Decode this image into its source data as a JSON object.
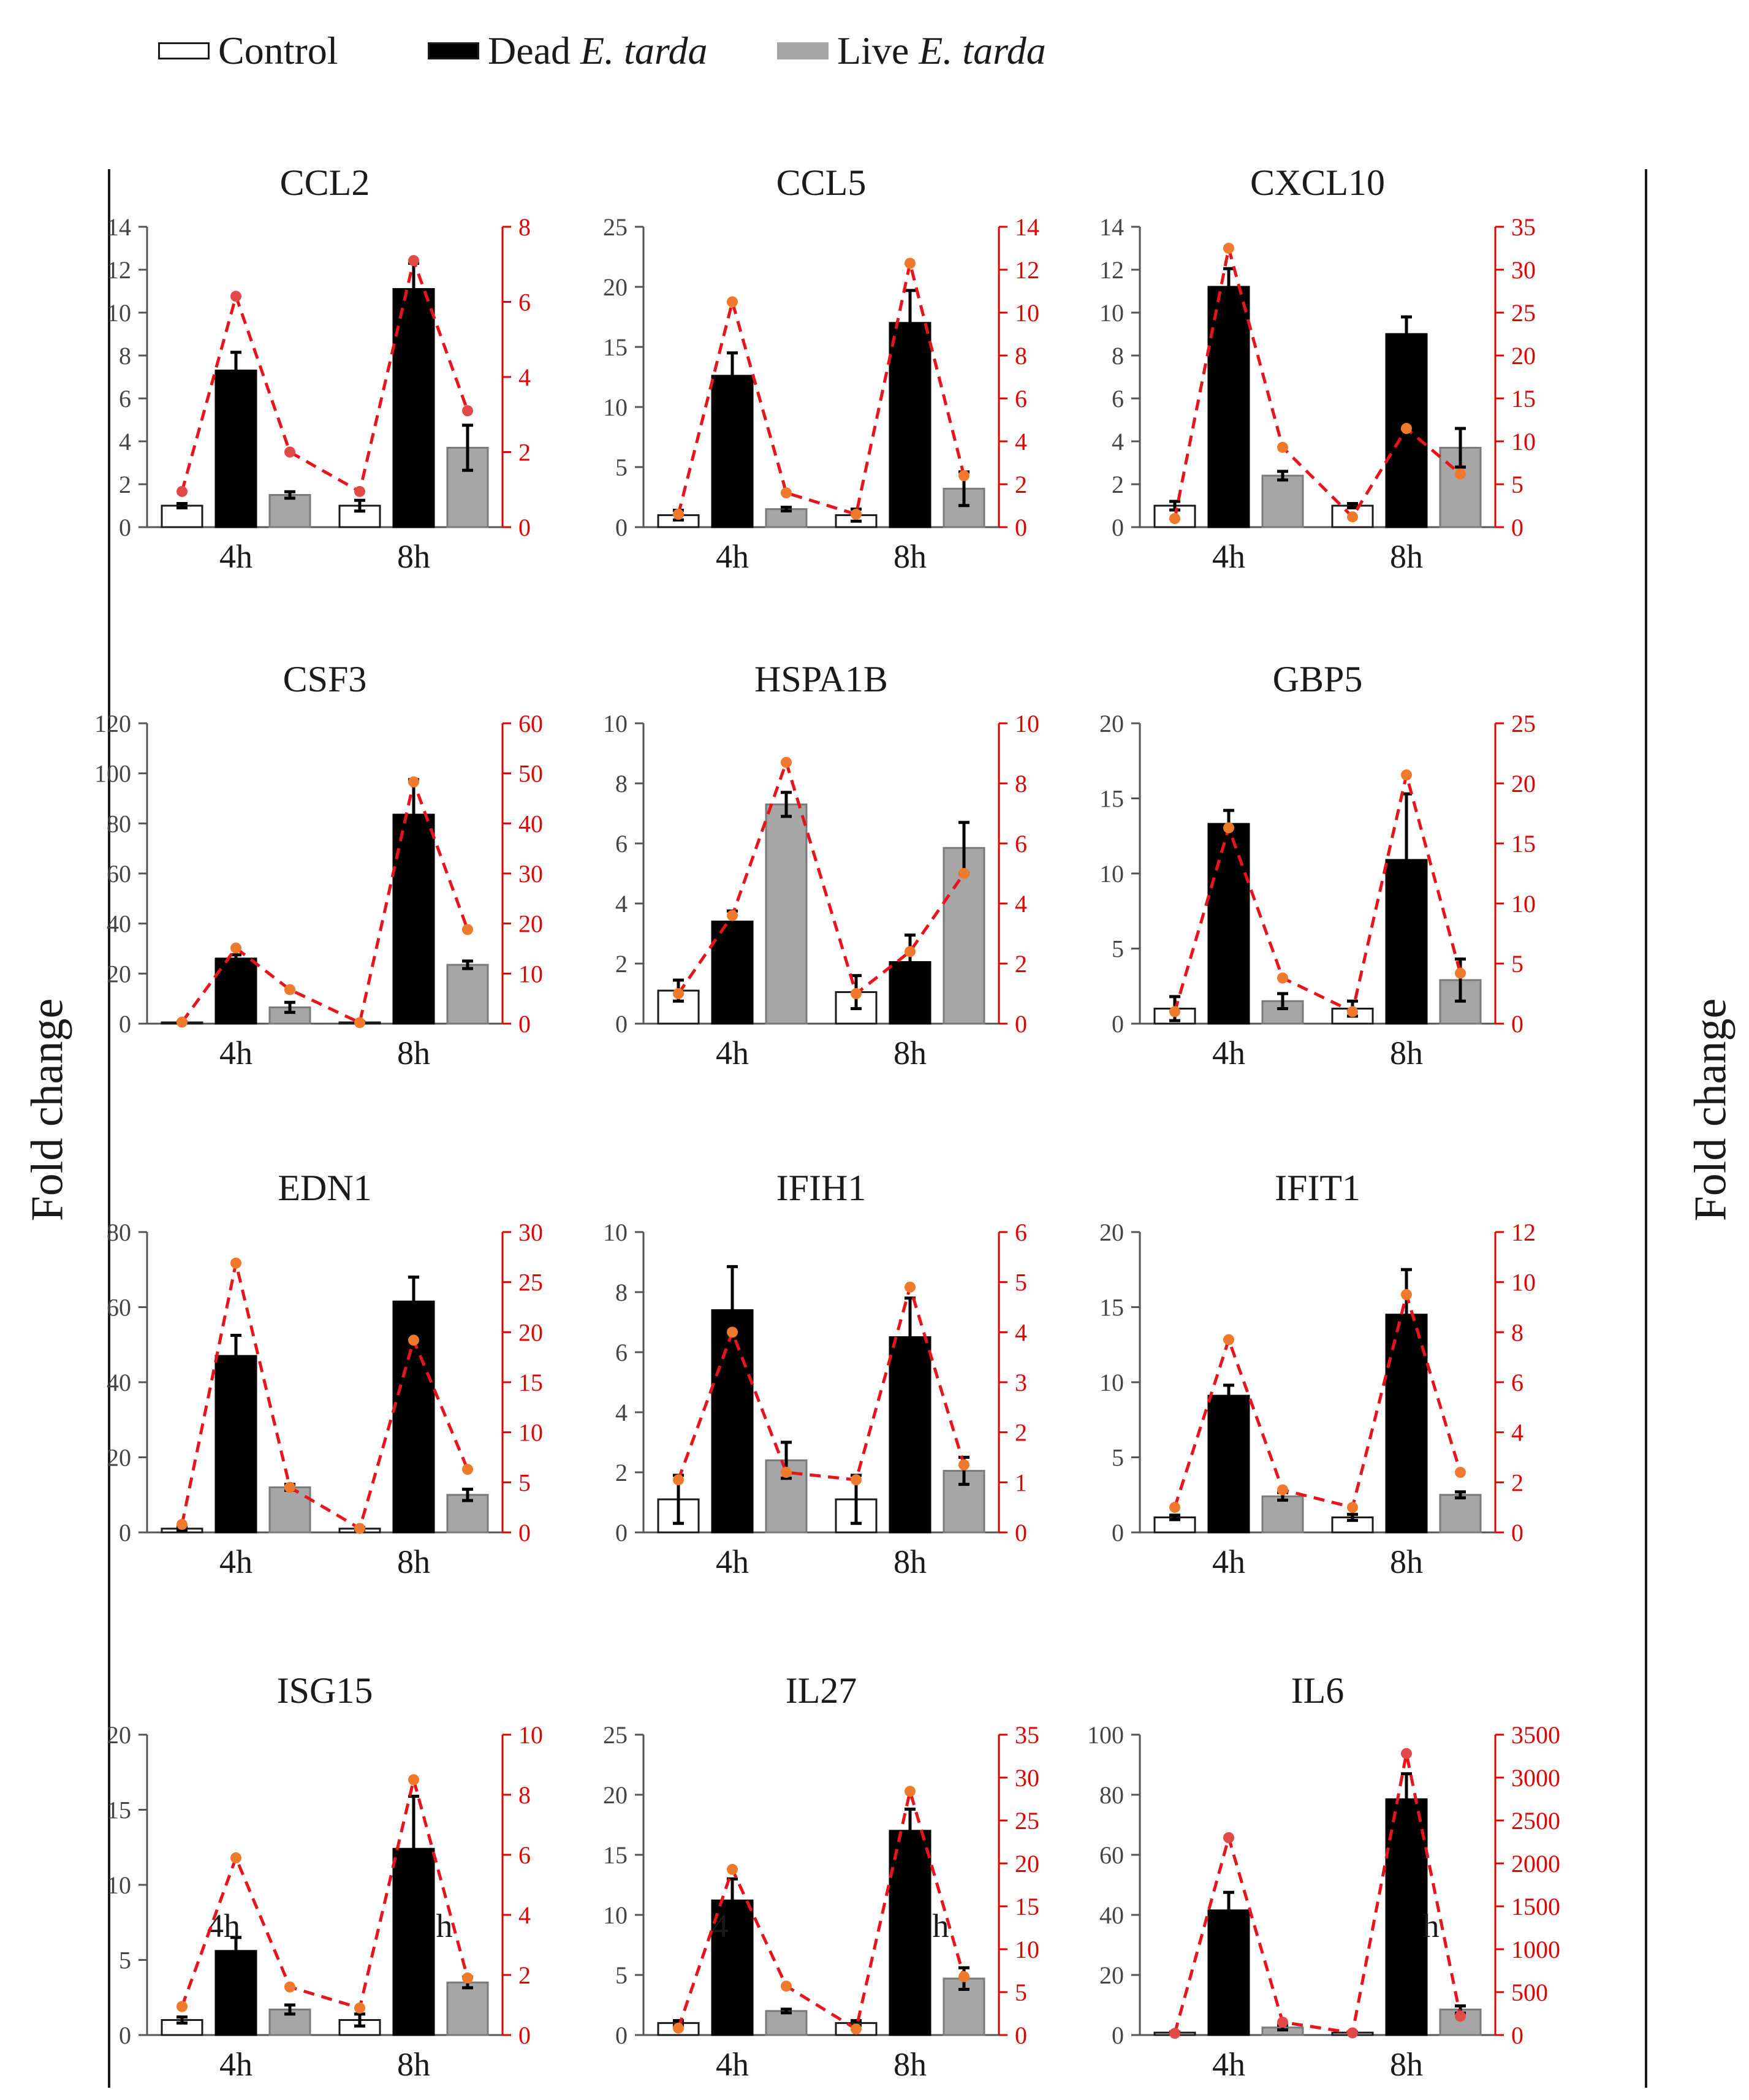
{
  "legend": {
    "control": "Control",
    "dead_prefix": "Dead ",
    "dead_species": "E. tarda",
    "live_prefix": "Live ",
    "live_species": "E. tarda"
  },
  "axis_label_left": "Fold change",
  "axis_label_right": "Fold change",
  "colors": {
    "control": "#ffffff",
    "dead": "#000000",
    "live": "#a6a6a6",
    "secondary_axis": "#e00000",
    "line": "#e8141c",
    "marker": "#f07a2c",
    "marker_alt": "#e24a4a"
  },
  "chart_data": [
    {
      "type": "bar",
      "title": "CCL2",
      "categories": [
        "4h",
        "8h"
      ],
      "series": [
        {
          "name": "Control",
          "values": [
            1.0,
            1.0
          ],
          "errors": [
            0.1,
            0.25
          ]
        },
        {
          "name": "Dead E. tarda",
          "values": [
            7.3,
            11.1
          ],
          "errors": [
            0.85,
            1.2
          ]
        },
        {
          "name": "Live E. tarda",
          "values": [
            1.5,
            3.7
          ],
          "errors": [
            0.15,
            1.05
          ]
        }
      ],
      "ylim": [
        0,
        14
      ],
      "yticks": [
        0,
        2,
        4,
        6,
        8,
        10,
        12,
        14
      ],
      "line": {
        "axis": "secondary",
        "values": [
          0.95,
          6.15,
          2.0,
          0.95,
          7.1,
          3.1
        ]
      },
      "y2lim": [
        0,
        8
      ],
      "y2ticks": [
        0,
        2,
        4,
        6,
        8
      ],
      "marker": "alt"
    },
    {
      "type": "bar",
      "title": "CCL5",
      "categories": [
        "4h",
        "8h"
      ],
      "series": [
        {
          "name": "Control",
          "values": [
            1.0,
            1.0
          ],
          "errors": [
            0.4,
            0.5
          ]
        },
        {
          "name": "Dead E. tarda",
          "values": [
            12.6,
            17.0
          ],
          "errors": [
            1.9,
            2.7
          ]
        },
        {
          "name": "Live E. tarda",
          "values": [
            1.5,
            3.2
          ],
          "errors": [
            0.15,
            1.4
          ]
        }
      ],
      "ylim": [
        0,
        25
      ],
      "yticks": [
        0,
        5,
        10,
        15,
        20,
        25
      ],
      "line": {
        "axis": "secondary",
        "values": [
          0.6,
          10.5,
          1.6,
          0.6,
          12.3,
          2.4
        ]
      },
      "y2lim": [
        0,
        14
      ],
      "y2ticks": [
        0,
        2,
        4,
        6,
        8,
        10,
        12,
        14
      ],
      "marker": "orange"
    },
    {
      "type": "bar",
      "title": "CXCL10",
      "categories": [
        "4h",
        "8h"
      ],
      "series": [
        {
          "name": "Control",
          "values": [
            1.0,
            1.0
          ],
          "errors": [
            0.2,
            0.1
          ]
        },
        {
          "name": "Dead E. tarda",
          "values": [
            11.2,
            9.0
          ],
          "errors": [
            0.85,
            0.8
          ]
        },
        {
          "name": "Live E. tarda",
          "values": [
            2.4,
            3.7
          ],
          "errors": [
            0.2,
            0.9
          ]
        }
      ],
      "ylim": [
        0,
        14
      ],
      "yticks": [
        0,
        2,
        4,
        6,
        8,
        10,
        12,
        14
      ],
      "line": {
        "axis": "secondary",
        "values": [
          1.0,
          32.5,
          9.3,
          1.2,
          11.5,
          6.2
        ]
      },
      "y2lim": [
        0,
        35
      ],
      "y2ticks": [
        0,
        5,
        10,
        15,
        20,
        25,
        30,
        35
      ],
      "marker": "orange"
    },
    {
      "type": "bar",
      "title": "CSF3",
      "categories": [
        "4h",
        "8h"
      ],
      "series": [
        {
          "name": "Control",
          "values": [
            0.5,
            0.5
          ],
          "errors": [
            0.2,
            0.2
          ]
        },
        {
          "name": "Dead E. tarda",
          "values": [
            26,
            83.5
          ],
          "errors": [
            1.5,
            14
          ]
        },
        {
          "name": "Live E. tarda",
          "values": [
            6.5,
            23.5
          ],
          "errors": [
            2.0,
            1.5
          ]
        }
      ],
      "ylim": [
        0,
        120
      ],
      "yticks": [
        0,
        20,
        40,
        60,
        80,
        100,
        120
      ],
      "line": {
        "axis": "secondary",
        "values": [
          0.3,
          15.1,
          6.8,
          0.2,
          48.3,
          18.8
        ]
      },
      "y2lim": [
        0,
        60
      ],
      "y2ticks": [
        0,
        10,
        20,
        30,
        40,
        50,
        60
      ],
      "marker": "orange"
    },
    {
      "type": "bar",
      "title": "HSPA1B",
      "categories": [
        "4h",
        "8h"
      ],
      "series": [
        {
          "name": "Control",
          "values": [
            1.1,
            1.05
          ],
          "errors": [
            0.35,
            0.55
          ]
        },
        {
          "name": "Dead E. tarda",
          "values": [
            3.4,
            2.05
          ],
          "errors": [
            0.35,
            0.9
          ]
        },
        {
          "name": "Live E. tarda",
          "values": [
            7.3,
            5.85
          ],
          "errors": [
            0.4,
            0.85
          ]
        }
      ],
      "ylim": [
        0,
        10
      ],
      "yticks": [
        0,
        2,
        4,
        6,
        8,
        10
      ],
      "line": {
        "axis": "secondary",
        "values": [
          1.0,
          3.6,
          8.7,
          1.0,
          2.4,
          5.0
        ]
      },
      "y2lim": [
        0,
        10
      ],
      "y2ticks": [
        0,
        2,
        4,
        6,
        8,
        10
      ],
      "marker": "orange"
    },
    {
      "type": "bar",
      "title": "GBP5",
      "categories": [
        "4h",
        "8h"
      ],
      "series": [
        {
          "name": "Control",
          "values": [
            1.0,
            1.0
          ],
          "errors": [
            0.8,
            0.5
          ]
        },
        {
          "name": "Dead E. tarda",
          "values": [
            13.3,
            10.9
          ],
          "errors": [
            0.9,
            4.4
          ]
        },
        {
          "name": "Live E. tarda",
          "values": [
            1.5,
            2.9
          ],
          "errors": [
            0.5,
            1.4
          ]
        }
      ],
      "ylim": [
        0,
        20
      ],
      "yticks": [
        0,
        5,
        10,
        15,
        20
      ],
      "line": {
        "axis": "secondary",
        "values": [
          1.0,
          16.3,
          3.8,
          1.0,
          20.7,
          4.2
        ]
      },
      "y2lim": [
        0,
        25
      ],
      "y2ticks": [
        0,
        5,
        10,
        15,
        20,
        25
      ],
      "marker": "orange"
    },
    {
      "type": "bar",
      "title": "EDN1",
      "categories": [
        "4h",
        "8h"
      ],
      "series": [
        {
          "name": "Control",
          "values": [
            1.0,
            1.0
          ],
          "errors": [
            0.4,
            0.3
          ]
        },
        {
          "name": "Dead E. tarda",
          "values": [
            47,
            61.5
          ],
          "errors": [
            5.5,
            6.5
          ]
        },
        {
          "name": "Live E. tarda",
          "values": [
            12,
            10
          ],
          "errors": [
            0.8,
            1.5
          ]
        }
      ],
      "ylim": [
        0,
        80
      ],
      "yticks": [
        0,
        20,
        40,
        60,
        80
      ],
      "line": {
        "axis": "secondary",
        "values": [
          0.8,
          26.9,
          4.5,
          0.4,
          19.2,
          6.3
        ]
      },
      "y2lim": [
        0,
        30
      ],
      "y2ticks": [
        0,
        5,
        10,
        15,
        20,
        25,
        30
      ],
      "marker": "orange"
    },
    {
      "type": "bar",
      "title": "IFIH1",
      "categories": [
        "4h",
        "8h"
      ],
      "series": [
        {
          "name": "Control",
          "values": [
            1.1,
            1.1
          ],
          "errors": [
            0.8,
            0.8
          ]
        },
        {
          "name": "Dead E. tarda",
          "values": [
            7.4,
            6.5
          ],
          "errors": [
            1.45,
            1.3
          ]
        },
        {
          "name": "Live E. tarda",
          "values": [
            2.4,
            2.05
          ],
          "errors": [
            0.6,
            0.45
          ]
        }
      ],
      "ylim": [
        0,
        10
      ],
      "yticks": [
        0,
        2,
        4,
        6,
        8,
        10
      ],
      "line": {
        "axis": "secondary",
        "values": [
          1.05,
          4.0,
          1.2,
          1.05,
          4.9,
          1.35
        ]
      },
      "y2lim": [
        0,
        6
      ],
      "y2ticks": [
        0,
        1,
        2,
        3,
        4,
        5,
        6
      ],
      "marker": "orange"
    },
    {
      "type": "bar",
      "title": "IFIT1",
      "categories": [
        "4h",
        "8h"
      ],
      "series": [
        {
          "name": "Control",
          "values": [
            1.0,
            1.0
          ],
          "errors": [
            0.15,
            0.2
          ]
        },
        {
          "name": "Dead E. tarda",
          "values": [
            9.1,
            14.5
          ],
          "errors": [
            0.7,
            3.0
          ]
        },
        {
          "name": "Live E. tarda",
          "values": [
            2.4,
            2.5
          ],
          "errors": [
            0.25,
            0.2
          ]
        }
      ],
      "ylim": [
        0,
        20
      ],
      "yticks": [
        0,
        5,
        10,
        15,
        20
      ],
      "line": {
        "axis": "secondary",
        "values": [
          1.0,
          7.7,
          1.7,
          1.0,
          9.5,
          2.4
        ]
      },
      "y2lim": [
        0,
        12
      ],
      "y2ticks": [
        0,
        2,
        4,
        6,
        8,
        10,
        12
      ],
      "marker": "orange"
    },
    {
      "type": "bar",
      "title": "ISG15",
      "categories": [
        "4h",
        "8h"
      ],
      "series": [
        {
          "name": "Control",
          "values": [
            1.0,
            1.0
          ],
          "errors": [
            0.2,
            0.4
          ]
        },
        {
          "name": "Dead E. tarda",
          "values": [
            5.6,
            12.4
          ],
          "errors": [
            0.9,
            3.5
          ]
        },
        {
          "name": "Live E. tarda",
          "values": [
            1.7,
            3.5
          ],
          "errors": [
            0.3,
            0.35
          ]
        }
      ],
      "ylim": [
        0,
        20
      ],
      "yticks": [
        0,
        5,
        10,
        15,
        20
      ],
      "line": {
        "axis": "secondary",
        "values": [
          0.95,
          5.9,
          1.6,
          0.9,
          8.5,
          1.9
        ]
      },
      "y2lim": [
        0,
        10
      ],
      "y2ticks": [
        0,
        2,
        4,
        6,
        8,
        10
      ],
      "marker": "orange",
      "overlap_labels": [
        "4h",
        "h"
      ]
    },
    {
      "type": "bar",
      "title": "IL27",
      "categories": [
        "4h",
        "8h"
      ],
      "series": [
        {
          "name": "Control",
          "values": [
            1.0,
            1.0
          ],
          "errors": [
            0.2,
            0.2
          ]
        },
        {
          "name": "Dead E. tarda",
          "values": [
            11.2,
            17.0
          ],
          "errors": [
            1.8,
            1.8
          ]
        },
        {
          "name": "Live E. tarda",
          "values": [
            2.0,
            4.7
          ],
          "errors": [
            0.15,
            0.9
          ]
        }
      ],
      "ylim": [
        0,
        25
      ],
      "yticks": [
        0,
        5,
        10,
        15,
        20,
        25
      ],
      "line": {
        "axis": "secondary",
        "values": [
          0.8,
          19.3,
          5.7,
          0.7,
          28.4,
          6.8
        ]
      },
      "y2lim": [
        0,
        35
      ],
      "y2ticks": [
        0,
        5,
        10,
        15,
        20,
        25,
        30,
        35
      ],
      "marker": "orange",
      "overlap_labels": [
        "4",
        "h"
      ]
    },
    {
      "type": "bar",
      "title": "IL6",
      "categories": [
        "4h",
        "8h"
      ],
      "series": [
        {
          "name": "Control",
          "values": [
            0.8,
            0.8
          ],
          "errors": [
            0.2,
            0.2
          ]
        },
        {
          "name": "Dead E. tarda",
          "values": [
            41.5,
            78.5
          ],
          "errors": [
            6.0,
            8.5
          ]
        },
        {
          "name": "Live E. tarda",
          "values": [
            2.5,
            8.5
          ],
          "errors": [
            0.8,
            1.2
          ]
        }
      ],
      "ylim": [
        0,
        100
      ],
      "yticks": [
        0,
        20,
        40,
        60,
        80,
        100
      ],
      "line": {
        "axis": "secondary",
        "values": [
          20,
          2300,
          150,
          25,
          3280,
          220
        ]
      },
      "y2lim": [
        0,
        3500
      ],
      "y2ticks": [
        0,
        500,
        1000,
        1500,
        2000,
        2500,
        3000,
        3500
      ],
      "marker": "alt",
      "overlap_labels": [
        "h"
      ]
    }
  ]
}
